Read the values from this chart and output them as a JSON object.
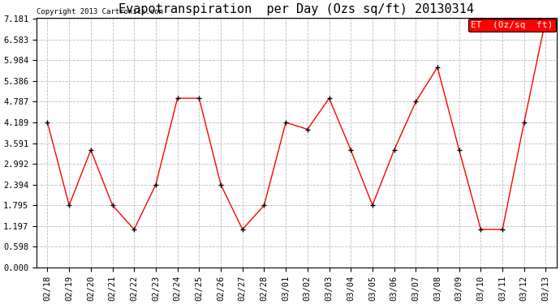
{
  "title": "Evapotranspiration  per Day (Ozs sq/ft) 20130314",
  "copyright": "Copyright 2013 Cartronics.com",
  "legend_label": "ET  (0z/sq  ft)",
  "x_labels": [
    "02/18",
    "02/19",
    "02/20",
    "02/21",
    "02/22",
    "02/23",
    "02/24",
    "02/25",
    "02/26",
    "02/27",
    "02/28",
    "03/01",
    "03/02",
    "03/03",
    "03/04",
    "03/05",
    "03/06",
    "03/07",
    "03/08",
    "03/09",
    "03/10",
    "03/11",
    "03/12",
    "03/13"
  ],
  "y_values": [
    4.189,
    1.795,
    3.392,
    1.795,
    1.097,
    2.394,
    4.887,
    4.887,
    2.394,
    1.097,
    1.795,
    4.189,
    3.99,
    4.887,
    3.392,
    1.795,
    3.392,
    4.787,
    5.784,
    3.392,
    1.097,
    1.097,
    4.189,
    7.181
  ],
  "line_color": "red",
  "marker_color": "black",
  "marker": "+",
  "ylim": [
    0.0,
    7.181
  ],
  "yticks": [
    0.0,
    0.598,
    1.197,
    1.795,
    2.394,
    2.992,
    3.591,
    4.189,
    4.787,
    5.386,
    5.984,
    6.583,
    7.181
  ],
  "bg_color": "white",
  "grid_color": "#bbbbbb",
  "title_fontsize": 11,
  "tick_fontsize": 7.5,
  "legend_bg": "red",
  "legend_text_color": "white"
}
